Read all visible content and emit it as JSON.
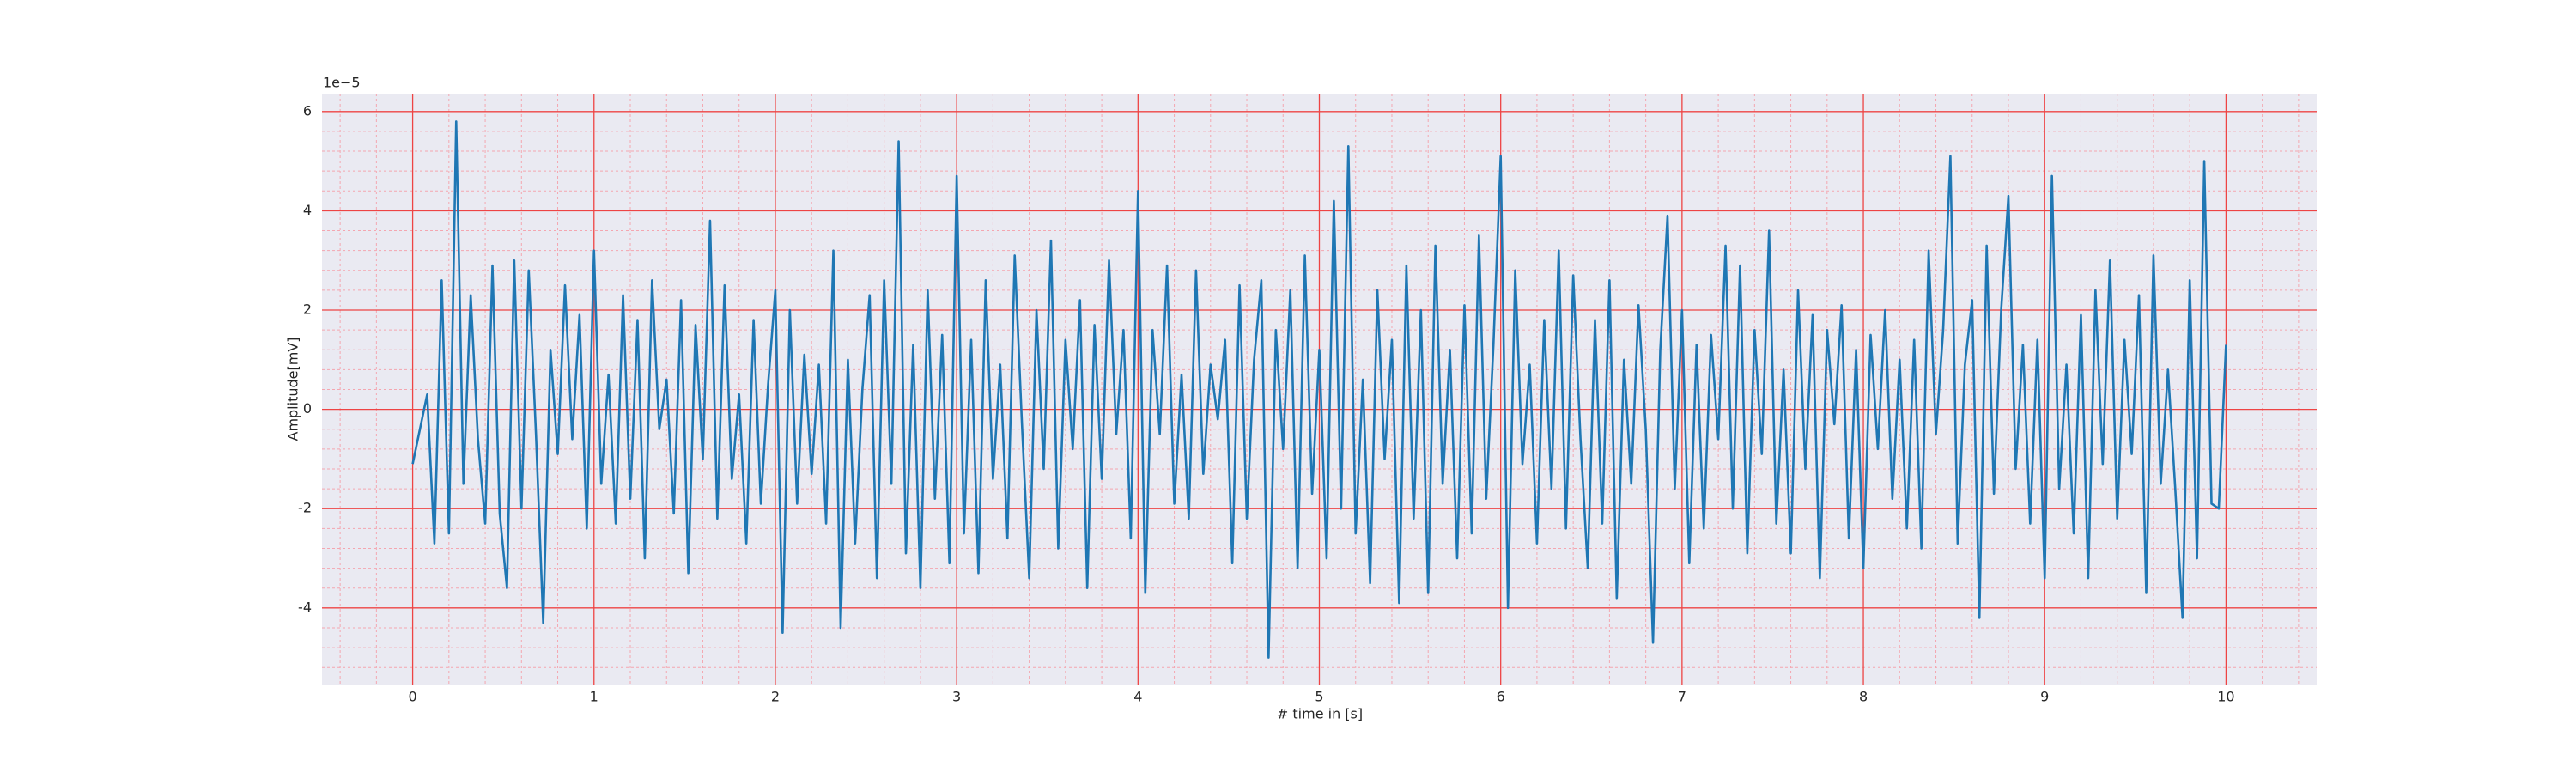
{
  "chart_data": {
    "type": "line",
    "xlabel": "# time in [s]",
    "ylabel": "Amplitude[mV]",
    "y_offset_text": "1e−5",
    "color": "#1f77b4",
    "grid": true,
    "minor_grid": true,
    "xlim": [
      -0.5,
      10.5
    ],
    "ylim": [
      -5.56,
      6.36
    ],
    "xticks": [
      0,
      1,
      2,
      3,
      4,
      5,
      6,
      7,
      8,
      9,
      10
    ],
    "yticks": [
      -4,
      -2,
      0,
      2,
      4,
      6
    ],
    "x": [
      0,
      0.04,
      0.08,
      0.12,
      0.16,
      0.2,
      0.24,
      0.28,
      0.32,
      0.36,
      0.4,
      0.44,
      0.48,
      0.52,
      0.56,
      0.6,
      0.64,
      0.68,
      0.72,
      0.76,
      0.8,
      0.84,
      0.88,
      0.92,
      0.96,
      1,
      1.04,
      1.08,
      1.12,
      1.16,
      1.2,
      1.24,
      1.28,
      1.32,
      1.36,
      1.4,
      1.44,
      1.48,
      1.52,
      1.56,
      1.6,
      1.64,
      1.68,
      1.72,
      1.76,
      1.8,
      1.84,
      1.88,
      1.92,
      1.96,
      2,
      2.04,
      2.08,
      2.12,
      2.16,
      2.2,
      2.24,
      2.28,
      2.32,
      2.36,
      2.4,
      2.44,
      2.48,
      2.52,
      2.56,
      2.6,
      2.64,
      2.68,
      2.72,
      2.76,
      2.8,
      2.84,
      2.88,
      2.92,
      2.96,
      3,
      3.04,
      3.08,
      3.12,
      3.16,
      3.2,
      3.24,
      3.28,
      3.32,
      3.36,
      3.4,
      3.44,
      3.48,
      3.52,
      3.56,
      3.6,
      3.64,
      3.68,
      3.72,
      3.76,
      3.8,
      3.84,
      3.88,
      3.92,
      3.96,
      4,
      4.04,
      4.08,
      4.12,
      4.16,
      4.2,
      4.24,
      4.28,
      4.32,
      4.36,
      4.4,
      4.44,
      4.48,
      4.52,
      4.56,
      4.6,
      4.64,
      4.68,
      4.72,
      4.76,
      4.8,
      4.84,
      4.88,
      4.92,
      4.96,
      5,
      5.04,
      5.08,
      5.12,
      5.16,
      5.2,
      5.24,
      5.28,
      5.32,
      5.36,
      5.4,
      5.44,
      5.48,
      5.52,
      5.56,
      5.6,
      5.64,
      5.68,
      5.72,
      5.76,
      5.8,
      5.84,
      5.88,
      5.92,
      5.96,
      6,
      6.04,
      6.08,
      6.12,
      6.16,
      6.2,
      6.24,
      6.28,
      6.32,
      6.36,
      6.4,
      6.44,
      6.48,
      6.52,
      6.56,
      6.6,
      6.64,
      6.68,
      6.72,
      6.76,
      6.8,
      6.84,
      6.88,
      6.92,
      6.96,
      7,
      7.04,
      7.08,
      7.12,
      7.16,
      7.2,
      7.24,
      7.28,
      7.32,
      7.36,
      7.4,
      7.44,
      7.48,
      7.52,
      7.56,
      7.6,
      7.64,
      7.68,
      7.72,
      7.76,
      7.8,
      7.84,
      7.88,
      7.92,
      7.96,
      8,
      8.04,
      8.08,
      8.12,
      8.16,
      8.2,
      8.24,
      8.28,
      8.32,
      8.36,
      8.4,
      8.44,
      8.48,
      8.52,
      8.56,
      8.6,
      8.64,
      8.68,
      8.72,
      8.76,
      8.8,
      8.84,
      8.88,
      8.92,
      8.96,
      9,
      9.04,
      9.08,
      9.12,
      9.16,
      9.2,
      9.24,
      9.28,
      9.32,
      9.36,
      9.4,
      9.44,
      9.48,
      9.52,
      9.56,
      9.6,
      9.64,
      9.68,
      9.72,
      9.76,
      9.8,
      9.84,
      9.88,
      9.92,
      9.96,
      10
    ],
    "values": [
      -1.1,
      -0.4,
      0.3,
      -2.7,
      2.6,
      -2.5,
      5.8,
      -1.5,
      2.3,
      -0.6,
      -2.3,
      2.9,
      -2.1,
      -3.6,
      3.0,
      -2.0,
      2.8,
      -0.5,
      -4.3,
      1.2,
      -0.9,
      2.5,
      -0.6,
      1.9,
      -2.4,
      3.2,
      -1.5,
      0.7,
      -2.3,
      2.3,
      -1.8,
      1.8,
      -3.0,
      2.6,
      -0.4,
      0.6,
      -2.1,
      2.2,
      -3.3,
      1.7,
      -1.0,
      3.8,
      -2.2,
      2.5,
      -1.4,
      0.3,
      -2.7,
      1.8,
      -1.9,
      0.5,
      2.4,
      -4.5,
      2.0,
      -1.9,
      1.1,
      -1.3,
      0.9,
      -2.3,
      3.2,
      -4.4,
      1.0,
      -2.7,
      0.4,
      2.3,
      -3.4,
      2.6,
      -1.5,
      5.4,
      -2.9,
      1.3,
      -3.6,
      2.4,
      -1.8,
      1.5,
      -3.1,
      4.7,
      -2.5,
      1.4,
      -3.3,
      2.6,
      -1.4,
      0.9,
      -2.6,
      3.1,
      -0.3,
      -3.4,
      2.0,
      -1.2,
      3.4,
      -2.8,
      1.4,
      -0.8,
      2.2,
      -3.6,
      1.7,
      -1.4,
      3.0,
      -0.5,
      1.6,
      -2.6,
      4.4,
      -3.7,
      1.6,
      -0.5,
      2.9,
      -1.9,
      0.7,
      -2.2,
      2.8,
      -1.3,
      0.9,
      -0.2,
      1.4,
      -3.1,
      2.5,
      -2.2,
      1.0,
      2.6,
      -5.0,
      1.6,
      -0.8,
      2.4,
      -3.2,
      3.1,
      -1.7,
      1.2,
      -3.0,
      4.2,
      -2.0,
      5.3,
      -2.5,
      0.6,
      -3.5,
      2.4,
      -1.0,
      1.4,
      -3.9,
      2.9,
      -2.2,
      2.0,
      -3.7,
      3.3,
      -1.5,
      1.2,
      -3.0,
      2.1,
      -2.5,
      3.5,
      -1.8,
      1.3,
      5.1,
      -4.0,
      2.8,
      -1.1,
      0.9,
      -2.7,
      1.8,
      -1.6,
      3.2,
      -2.4,
      2.7,
      -0.6,
      -3.2,
      1.8,
      -2.3,
      2.6,
      -3.8,
      1.0,
      -1.5,
      2.1,
      -0.4,
      -4.7,
      1.2,
      3.9,
      -1.6,
      2.0,
      -3.1,
      1.3,
      -2.4,
      1.5,
      -0.6,
      3.3,
      -2.0,
      2.9,
      -2.9,
      1.6,
      -0.9,
      3.6,
      -2.3,
      0.8,
      -2.9,
      2.4,
      -1.2,
      1.9,
      -3.4,
      1.6,
      -0.3,
      2.1,
      -2.6,
      1.2,
      -3.2,
      1.5,
      -0.8,
      2.0,
      -1.8,
      1.0,
      -2.4,
      1.4,
      -2.8,
      3.2,
      -0.5,
      1.6,
      5.1,
      -2.7,
      0.9,
      2.2,
      -4.2,
      3.3,
      -1.7,
      2.0,
      4.3,
      -1.2,
      1.3,
      -2.3,
      1.4,
      -3.4,
      4.7,
      -1.6,
      0.9,
      -2.5,
      1.9,
      -3.4,
      2.4,
      -1.1,
      3.0,
      -2.2,
      1.4,
      -0.9,
      2.3,
      -3.7,
      3.1,
      -1.5,
      0.8,
      -1.6,
      -4.2,
      2.6,
      -3.0,
      5.0,
      -1.9,
      -2.0,
      1.3
    ]
  }
}
